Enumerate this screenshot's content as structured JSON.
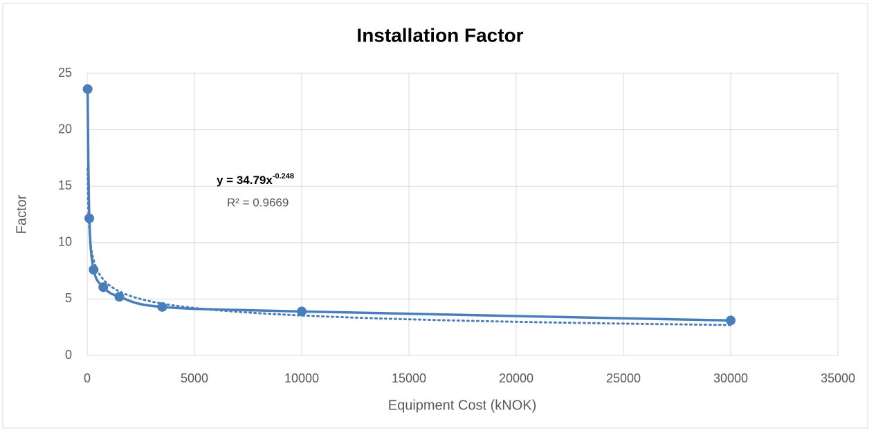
{
  "chart_data": {
    "type": "scatter",
    "title": "Installation Factor",
    "xlabel": "Equipment Cost (kNOK)",
    "ylabel": "Factor",
    "x": [
      20,
      100,
      300,
      750,
      1500,
      3500,
      10000,
      30000
    ],
    "series": [
      {
        "color": "#4a7ebb",
        "values": [
          23.6,
          12.15,
          7.6,
          6.05,
          5.2,
          4.3,
          3.9,
          3.1
        ]
      }
    ],
    "smooth": true,
    "trendline": {
      "type": "power",
      "coefficient": 34.79,
      "exponent": -0.248,
      "color": "#4a7ebb",
      "label": "y = 34.79x",
      "label_exponent": "-0.248",
      "r2_label": "R² = 0.9669"
    },
    "xlim": [
      0,
      35000
    ],
    "xticks": [
      0,
      5000,
      10000,
      15000,
      20000,
      25000,
      30000,
      35000
    ],
    "ylim": [
      0,
      25
    ],
    "yticks": [
      0,
      5,
      10,
      15,
      20,
      25
    ],
    "grid": true
  }
}
